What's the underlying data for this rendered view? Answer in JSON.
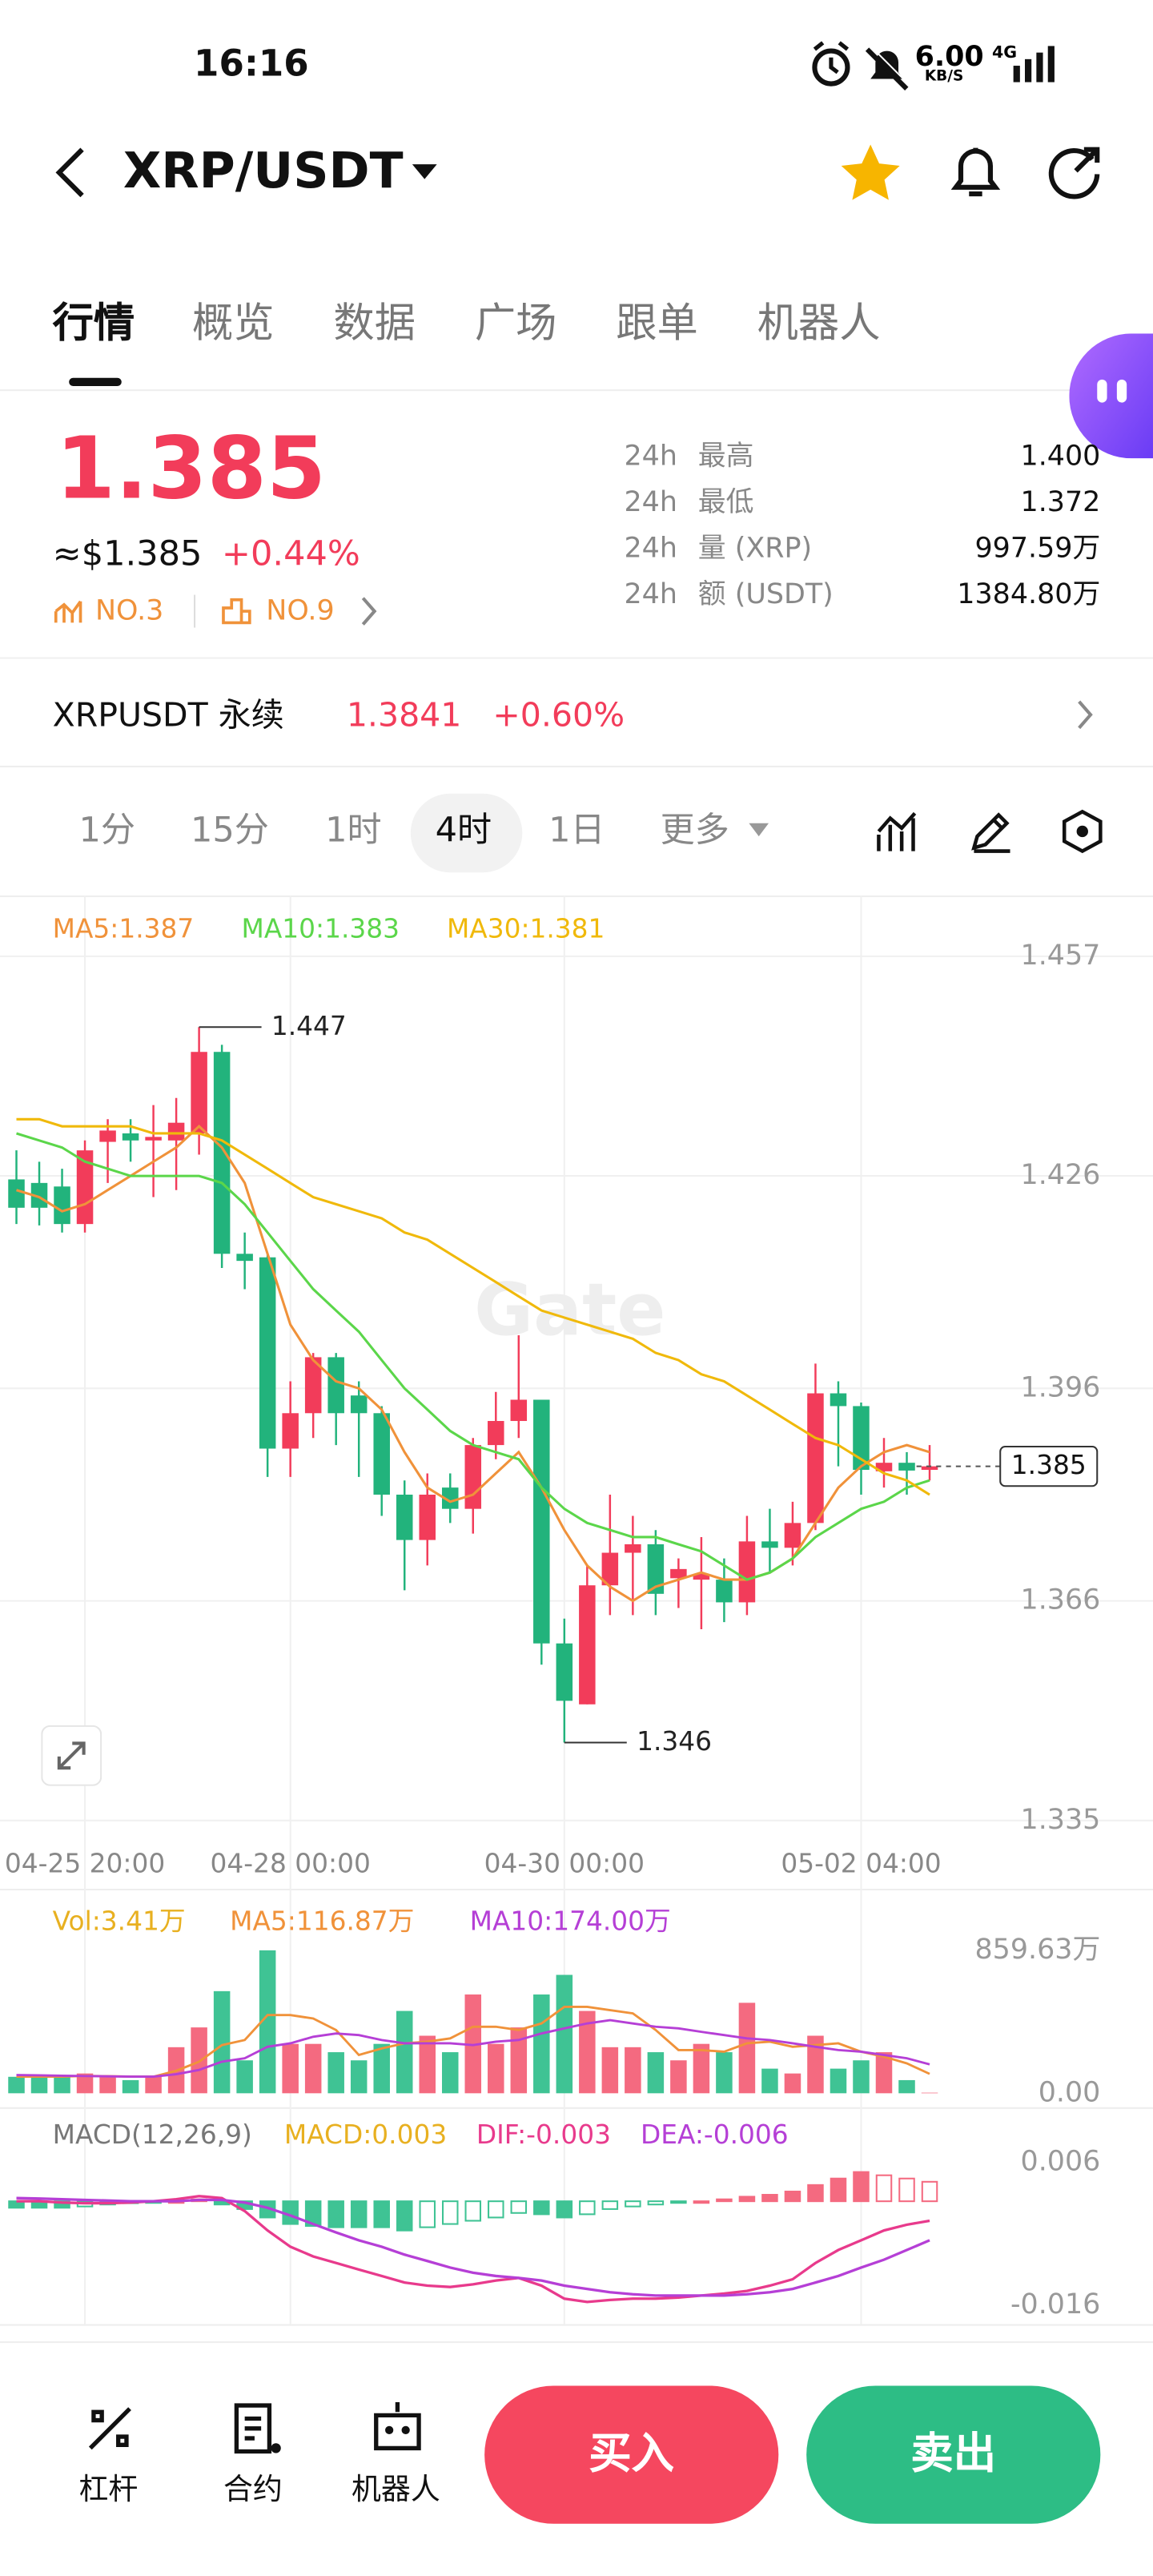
{
  "status": {
    "time": "16:16",
    "net_speed": "6.00",
    "net_unit": "KB/S",
    "signal": "4G"
  },
  "header": {
    "pair": "XRP/USDT"
  },
  "tabs": [
    "行情",
    "概览",
    "数据",
    "广场",
    "跟单",
    "机器人"
  ],
  "ticker": {
    "last": "1.385",
    "usd": "≈$1.385",
    "change": "+0.44%",
    "rank_1": "NO.3",
    "rank_2": "NO.9",
    "stats": [
      [
        "24h",
        "最高",
        "1.400"
      ],
      [
        "24h",
        "最低",
        "1.372"
      ],
      [
        "24h",
        "量 (XRP)",
        "997.59万"
      ],
      [
        "24h",
        "额 (USDT)",
        "1384.80万"
      ]
    ]
  },
  "perpetual": {
    "name": "XRPUSDT 永续",
    "price": "1.3841",
    "change": "+0.60%"
  },
  "intervals": {
    "items": [
      "1分",
      "15分",
      "1时",
      "4时",
      "1日",
      "更多"
    ],
    "active_index": 3
  },
  "chart_data": [
    {
      "type": "candlestick",
      "watermark": "Gate",
      "up_color": "#f23c5a",
      "down_color": "#22b37c",
      "grid": true,
      "categories": [
        null,
        null,
        null,
        "04-25 20:00",
        null,
        null,
        null,
        null,
        null,
        null,
        null,
        null,
        "04-28 00:00",
        null,
        null,
        null,
        null,
        null,
        null,
        null,
        null,
        null,
        null,
        null,
        "04-30 00:00",
        null,
        null,
        null,
        null,
        null,
        null,
        null,
        null,
        null,
        null,
        null,
        null,
        "05-02 04:00",
        null,
        null,
        null
      ],
      "open": [
        1.4255,
        1.425,
        1.4245,
        1.4192,
        1.4308,
        1.432,
        1.431,
        1.431,
        1.432,
        1.4435,
        1.415,
        1.4145,
        1.3875,
        1.3925,
        1.4004,
        1.395,
        1.3925,
        1.381,
        1.3746,
        1.382,
        1.379,
        1.388,
        1.3914,
        1.3944,
        1.36,
        1.3514,
        1.3682,
        1.3728,
        1.374,
        1.3692,
        1.369,
        1.369,
        1.3658,
        1.3744,
        1.3735,
        1.377,
        1.3953,
        1.3935,
        1.3843,
        1.3855,
        1.3845
      ],
      "high": [
        1.4296,
        1.428,
        1.427,
        1.431,
        1.434,
        1.434,
        1.436,
        1.437,
        1.447,
        1.4445,
        1.418,
        1.415,
        1.397,
        1.401,
        1.401,
        1.397,
        1.3935,
        1.383,
        1.384,
        1.384,
        1.389,
        1.3955,
        1.4035,
        1.3944,
        1.3635,
        1.371,
        1.381,
        1.378,
        1.376,
        1.372,
        1.375,
        1.372,
        1.378,
        1.379,
        1.38,
        1.3995,
        1.397,
        1.394,
        1.389,
        1.387,
        1.388
      ],
      "low": [
        1.4192,
        1.419,
        1.418,
        1.418,
        1.425,
        1.428,
        1.423,
        1.424,
        1.429,
        1.413,
        1.41,
        1.3835,
        1.3835,
        1.389,
        1.388,
        1.3835,
        1.378,
        1.3675,
        1.371,
        1.377,
        1.3755,
        1.386,
        1.389,
        1.357,
        1.346,
        1.3514,
        1.364,
        1.364,
        1.364,
        1.365,
        1.362,
        1.363,
        1.364,
        1.37,
        1.371,
        1.376,
        1.385,
        1.381,
        1.382,
        1.381,
        1.383
      ],
      "close": [
        1.4215,
        1.4215,
        1.4192,
        1.4296,
        1.4324,
        1.431,
        1.4315,
        1.4335,
        1.4435,
        1.415,
        1.414,
        1.3875,
        1.3925,
        1.4004,
        1.3925,
        1.3925,
        1.381,
        1.3746,
        1.381,
        1.379,
        1.388,
        1.3914,
        1.3944,
        1.36,
        1.3519,
        1.3682,
        1.3728,
        1.374,
        1.367,
        1.3705,
        1.3698,
        1.3658,
        1.3744,
        1.3735,
        1.377,
        1.3953,
        1.3935,
        1.3845,
        1.3855,
        1.3844,
        1.385
      ],
      "series": [
        {
          "name": "MA5:1.387",
          "color": "#f0923a",
          "values": [
            1.424,
            1.423,
            1.421,
            1.422,
            1.424,
            1.426,
            1.428,
            1.43,
            1.433,
            1.43,
            1.425,
            1.415,
            1.405,
            1.4,
            1.397,
            1.396,
            1.393,
            1.387,
            1.382,
            1.38,
            1.381,
            1.384,
            1.387,
            1.382,
            1.376,
            1.371,
            1.368,
            1.366,
            1.368,
            1.369,
            1.37,
            1.369,
            1.369,
            1.37,
            1.372,
            1.377,
            1.382,
            1.385,
            1.387,
            1.388,
            1.387
          ]
        },
        {
          "name": "MA10:1.383",
          "color": "#5bd64a",
          "values": [
            1.432,
            1.431,
            1.43,
            1.428,
            1.427,
            1.426,
            1.426,
            1.426,
            1.426,
            1.425,
            1.422,
            1.418,
            1.414,
            1.41,
            1.407,
            1.404,
            1.4,
            1.396,
            1.393,
            1.39,
            1.388,
            1.387,
            1.386,
            1.382,
            1.379,
            1.377,
            1.376,
            1.375,
            1.375,
            1.374,
            1.373,
            1.371,
            1.369,
            1.37,
            1.372,
            1.375,
            1.377,
            1.379,
            1.38,
            1.382,
            1.383
          ]
        },
        {
          "name": "MA30:1.381",
          "color": "#f0b90b",
          "values": [
            1.434,
            1.434,
            1.433,
            1.433,
            1.433,
            1.433,
            1.432,
            1.432,
            1.432,
            1.431,
            1.429,
            1.427,
            1.425,
            1.423,
            1.422,
            1.421,
            1.42,
            1.418,
            1.417,
            1.415,
            1.413,
            1.411,
            1.409,
            1.407,
            1.406,
            1.405,
            1.404,
            1.403,
            1.401,
            1.4,
            1.398,
            1.397,
            1.395,
            1.393,
            1.391,
            1.389,
            1.388,
            1.386,
            1.384,
            1.383,
            1.381
          ]
        }
      ],
      "max_label": 1.447,
      "min_label": 1.346,
      "last_price": 1.385,
      "ylim": [
        1.335,
        1.457
      ],
      "yticks": [
        1.457,
        1.426,
        1.396,
        1.366,
        1.335
      ]
    },
    {
      "type": "bar",
      "ylim": [
        0,
        859.63
      ],
      "yticks": [
        {
          "value": 859.63,
          "label": "859.63万"
        },
        {
          "value": 0,
          "label": "0.00"
        }
      ],
      "series": [
        {
          "name": "Vol:3.41万",
          "color": "#e8b020",
          "type": "bar",
          "values": [
            99,
            99,
            99,
            119,
            99,
            79,
            99,
            277,
            396,
            614,
            198,
            859.63,
            297,
            297,
            247,
            198,
            297,
            495,
            346,
            247,
            594,
            297,
            396,
            594,
            712,
            495,
            277,
            277,
            247,
            198,
            297,
            247,
            544,
            148,
            119,
            346,
            148,
            198,
            247,
            79,
            3.41
          ]
        },
        {
          "name": "MA5:116.87万",
          "color": "#f0923a",
          "type": "line",
          "values": [
            100,
            100,
            100,
            105,
            103,
            100,
            100,
            135,
            190,
            290,
            320,
            470,
            470,
            450,
            380,
            230,
            270,
            300,
            310,
            330,
            400,
            400,
            380,
            420,
            520,
            520,
            500,
            480,
            380,
            260,
            260,
            250,
            300,
            310,
            280,
            290,
            300,
            250,
            220,
            180,
            116.87
          ]
        },
        {
          "name": "MA10:174.00万",
          "color": "#b53fd6",
          "type": "line",
          "values": [
            110,
            108,
            106,
            104,
            102,
            100,
            100,
            115,
            140,
            190,
            210,
            280,
            300,
            340,
            360,
            350,
            320,
            300,
            300,
            300,
            290,
            310,
            320,
            360,
            390,
            420,
            440,
            420,
            400,
            390,
            370,
            350,
            330,
            320,
            300,
            280,
            260,
            250,
            230,
            210,
            174
          ]
        }
      ]
    },
    {
      "type": "macd",
      "title": "MACD(12,26,9)",
      "ylim": [
        -0.016,
        0.006
      ],
      "yticks": [
        0.006,
        -0.016
      ],
      "series": [
        {
          "name": "MACD:0.003",
          "color": "#e8b020",
          "type": "bar",
          "values": [
            -0.001,
            -0.001,
            -0.001,
            -0.0008,
            -0.0005,
            -0.0003,
            -0.0002,
            0,
            0.0003,
            -0.0005,
            -0.0012,
            -0.0025,
            -0.0035,
            -0.0038,
            -0.004,
            -0.004,
            -0.004,
            -0.0045,
            -0.004,
            -0.0035,
            -0.003,
            -0.0025,
            -0.0018,
            -0.002,
            -0.0025,
            -0.002,
            -0.0012,
            -0.0008,
            -0.0005,
            -0.0002,
            0,
            0.0003,
            0.0007,
            0.001,
            0.0015,
            0.0025,
            0.0035,
            0.0045,
            0.004,
            0.0035,
            0.003
          ]
        },
        {
          "name": "DIF:-0.003",
          "color": "#e83a8c",
          "type": "line",
          "values": [
            0,
            0,
            -0.0002,
            -0.0003,
            -0.0003,
            -0.0002,
            0,
            0.0003,
            0.0008,
            0.0005,
            -0.0015,
            -0.0045,
            -0.007,
            -0.0085,
            -0.0095,
            -0.0105,
            -0.0115,
            -0.0125,
            -0.013,
            -0.0132,
            -0.0128,
            -0.0122,
            -0.0118,
            -0.013,
            -0.015,
            -0.0155,
            -0.0152,
            -0.015,
            -0.015,
            -0.0148,
            -0.0145,
            -0.0142,
            -0.0138,
            -0.013,
            -0.012,
            -0.0095,
            -0.0075,
            -0.006,
            -0.0045,
            -0.0036,
            -0.003
          ]
        },
        {
          "name": "DEA:-0.006",
          "color": "#b53fd6",
          "type": "line",
          "values": [
            0.0005,
            0.0004,
            0.0003,
            0.0002,
            0.0001,
            0,
            0,
            0,
            0.0002,
            0.0002,
            -0.0002,
            -0.001,
            -0.0022,
            -0.0035,
            -0.0048,
            -0.006,
            -0.007,
            -0.0082,
            -0.0092,
            -0.0102,
            -0.011,
            -0.0115,
            -0.0118,
            -0.0122,
            -0.013,
            -0.0135,
            -0.014,
            -0.0143,
            -0.0145,
            -0.0145,
            -0.0145,
            -0.0145,
            -0.0143,
            -0.014,
            -0.0135,
            -0.0125,
            -0.0115,
            -0.0102,
            -0.009,
            -0.0075,
            -0.006
          ]
        }
      ]
    }
  ],
  "bottom": {
    "tools": [
      "杠杆",
      "合约",
      "机器人"
    ],
    "buy": "买入",
    "sell": "卖出"
  }
}
